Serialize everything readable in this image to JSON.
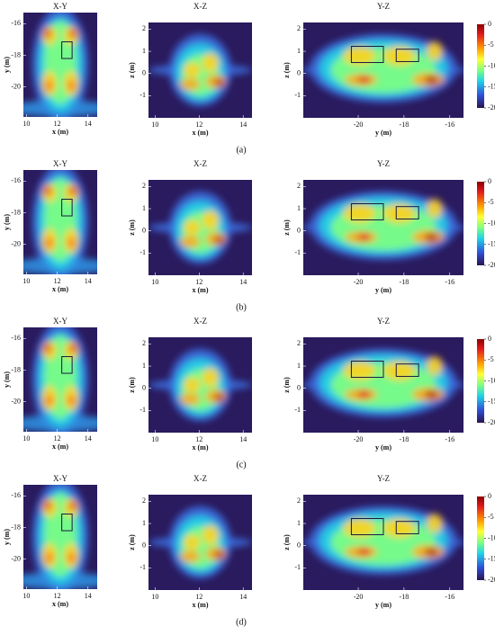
{
  "chart_data": [
    {
      "type": "heatmap",
      "label": "(a)",
      "panels": [
        {
          "title": "X-Y",
          "xlabel": "x (m)",
          "ylabel": "y (m)",
          "xlim": [
            9.8,
            14.6
          ],
          "ylim": [
            -21.9,
            -15.3
          ],
          "xticks": [
            10,
            12,
            14
          ],
          "yticks": [
            -16,
            -18,
            -20
          ]
        },
        {
          "title": "X-Z",
          "xlabel": "x (m)",
          "ylabel": "z (m)",
          "xlim": [
            9.7,
            14.4
          ],
          "ylim": [
            -2,
            2.3
          ],
          "xticks": [
            10,
            12,
            14
          ],
          "yticks": [
            2,
            1,
            0,
            -1
          ]
        },
        {
          "title": "Y-Z",
          "xlabel": "y (m)",
          "ylabel": "z (m)",
          "xlim": [
            -22.4,
            -15.4
          ],
          "ylim": [
            -2,
            2.3
          ],
          "xticks": [
            -20,
            -18,
            -16
          ],
          "yticks": [
            2,
            1,
            0,
            -1
          ]
        }
      ],
      "colorbar": {
        "lim": [
          -20,
          0
        ],
        "ticks": [
          0,
          -5,
          -10,
          -15,
          -20
        ]
      }
    },
    {
      "type": "heatmap",
      "label": "(b)",
      "panels": [
        {
          "title": "X-Y",
          "xlabel": "x (m)",
          "ylabel": "y (m)",
          "xlim": [
            9.8,
            14.6
          ],
          "ylim": [
            -21.9,
            -15.3
          ],
          "xticks": [
            10,
            12,
            14
          ],
          "yticks": [
            -16,
            -18,
            -20
          ]
        },
        {
          "title": "X-Z",
          "xlabel": "x (m)",
          "ylabel": "z (m)",
          "xlim": [
            9.7,
            14.4
          ],
          "ylim": [
            -2,
            2.3
          ],
          "xticks": [
            10,
            12,
            14
          ],
          "yticks": [
            2,
            1,
            0,
            -1
          ]
        },
        {
          "title": "Y-Z",
          "xlabel": "y (m)",
          "ylabel": "z (m)",
          "xlim": [
            -22.4,
            -15.4
          ],
          "ylim": [
            -2,
            2.3
          ],
          "xticks": [
            -20,
            -18,
            -16
          ],
          "yticks": [
            2,
            1,
            0,
            -1
          ]
        }
      ],
      "colorbar": {
        "lim": [
          -20,
          0
        ],
        "ticks": [
          0,
          -5,
          -10,
          -15,
          -20
        ]
      }
    },
    {
      "type": "heatmap",
      "label": "(c)",
      "panels": [
        {
          "title": "X-Y",
          "xlabel": "x (m)",
          "ylabel": "y (m)",
          "xlim": [
            9.8,
            14.6
          ],
          "ylim": [
            -21.9,
            -15.3
          ],
          "xticks": [
            10,
            12,
            14
          ],
          "yticks": [
            -16,
            -18,
            -20
          ]
        },
        {
          "title": "X-Z",
          "xlabel": "x (m)",
          "ylabel": "z (m)",
          "xlim": [
            9.7,
            14.4
          ],
          "ylim": [
            -2,
            2.3
          ],
          "xticks": [
            10,
            12,
            14
          ],
          "yticks": [
            2,
            1,
            0,
            -1
          ]
        },
        {
          "title": "Y-Z",
          "xlabel": "y (m)",
          "ylabel": "z (m)",
          "xlim": [
            -22.4,
            -15.4
          ],
          "ylim": [
            -2,
            2.3
          ],
          "xticks": [
            -20,
            -18,
            -16
          ],
          "yticks": [
            2,
            1,
            0,
            -1
          ]
        }
      ],
      "colorbar": {
        "lim": [
          -20,
          0
        ],
        "ticks": [
          0,
          -5,
          -10,
          -15,
          -20
        ]
      }
    },
    {
      "type": "heatmap",
      "label": "(d)",
      "panels": [
        {
          "title": "X-Y",
          "xlabel": "x (m)",
          "ylabel": "y (m)",
          "xlim": [
            9.8,
            14.6
          ],
          "ylim": [
            -21.9,
            -15.3
          ],
          "xticks": [
            10,
            12,
            14
          ],
          "yticks": [
            -16,
            -18,
            -20
          ]
        },
        {
          "title": "X-Z",
          "xlabel": "x (m)",
          "ylabel": "z (m)",
          "xlim": [
            9.7,
            14.4
          ],
          "ylim": [
            -2,
            2.3
          ],
          "xticks": [
            10,
            12,
            14
          ],
          "yticks": [
            2,
            1,
            0,
            -1
          ]
        },
        {
          "title": "Y-Z",
          "xlabel": "y (m)",
          "ylabel": "z (m)",
          "xlim": [
            -22.4,
            -15.4
          ],
          "ylim": [
            -2,
            2.3
          ],
          "xticks": [
            -20,
            -18,
            -16
          ],
          "yticks": [
            2,
            1,
            0,
            -1
          ]
        }
      ],
      "colorbar": {
        "lim": [
          -20,
          0
        ],
        "ticks": [
          0,
          -5,
          -10,
          -15,
          -20
        ]
      }
    }
  ]
}
